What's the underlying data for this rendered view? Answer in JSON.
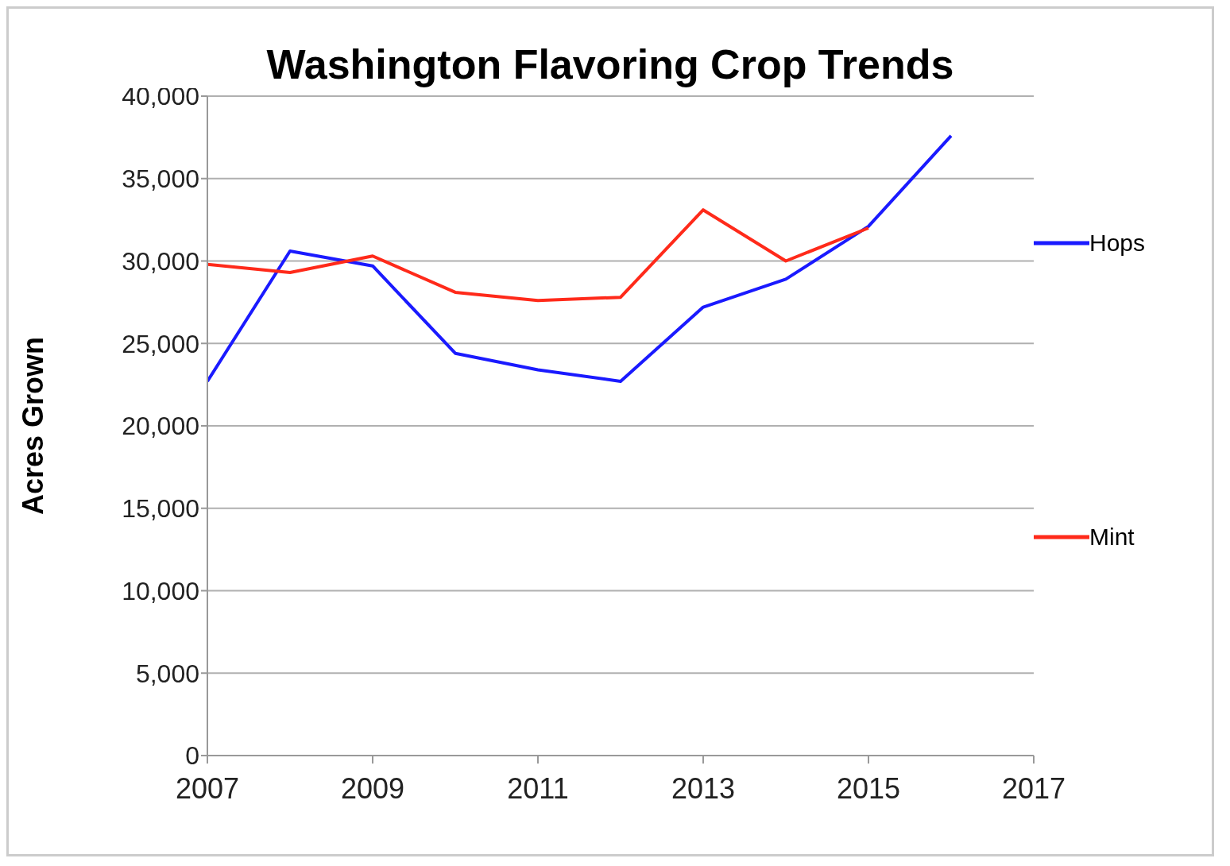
{
  "chart_data": {
    "type": "line",
    "title": "Washington Flavoring Crop Trends",
    "ylabel": "Acres Grown",
    "x": [
      2007,
      2008,
      2009,
      2010,
      2011,
      2012,
      2013,
      2014,
      2015,
      2016
    ],
    "series": [
      {
        "name": "Hops",
        "color": "#1a1aff",
        "values": [
          22700,
          30600,
          29700,
          24400,
          23400,
          22700,
          27200,
          28900,
          32100,
          37600
        ]
      },
      {
        "name": "Mint",
        "color": "#ff2a1a",
        "values": [
          29800,
          29300,
          30300,
          28100,
          27600,
          27800,
          33100,
          30000,
          32000,
          null
        ]
      }
    ],
    "xlim": [
      2007,
      2017
    ],
    "xticks": [
      2007,
      2009,
      2011,
      2013,
      2015,
      2017
    ],
    "ylim": [
      0,
      40000
    ],
    "yticks": [
      0,
      {
        "value": 5000,
        "label": "5,000"
      },
      {
        "value": 10000,
        "label": "10,000"
      },
      {
        "value": 15000,
        "label": "15,000"
      },
      {
        "value": 20000,
        "label": "20,000"
      },
      {
        "value": 25000,
        "label": "25,000"
      },
      {
        "value": 30000,
        "label": "30,000"
      },
      {
        "value": 35000,
        "label": "35,000"
      },
      {
        "value": 40000,
        "label": "40,000"
      }
    ],
    "grid": "y",
    "legend": "right",
    "marker": "none",
    "line_style": "solid"
  }
}
